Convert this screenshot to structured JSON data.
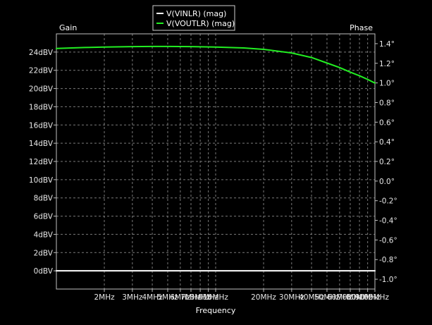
{
  "chart_data": {
    "type": "line",
    "title": "",
    "xlabel": "Frequency",
    "ylabel_left": "Gain",
    "ylabel_right": "Phase",
    "x_scale": "log",
    "x_unit": "Hz",
    "xlim": [
      1000000,
      100000000
    ],
    "ylim_left": [
      -2,
      26
    ],
    "ylim_right": [
      -1.1,
      1.5
    ],
    "grid": true,
    "legend_position": "top-center",
    "x_ticks": [
      {
        "value": 2000000,
        "label": "2MHz"
      },
      {
        "value": 3000000,
        "label": "3MHz"
      },
      {
        "value": 4000000,
        "label": "4MHz"
      },
      {
        "value": 5000000,
        "label": "5MHz"
      },
      {
        "value": 6000000,
        "label": "6MHz"
      },
      {
        "value": 7000000,
        "label": "7MHz"
      },
      {
        "value": 8000000,
        "label": "8MHz"
      },
      {
        "value": 9000000,
        "label": "9MHz"
      },
      {
        "value": 10000000,
        "label": "10MHz"
      },
      {
        "value": 20000000,
        "label": "20MHz"
      },
      {
        "value": 30000000,
        "label": "30MHz"
      },
      {
        "value": 40000000,
        "label": "40MHz"
      },
      {
        "value": 50000000,
        "label": "50MHz"
      },
      {
        "value": 60000000,
        "label": "60MHz"
      },
      {
        "value": 70000000,
        "label": "70MHz"
      },
      {
        "value": 80000000,
        "label": "80MHz"
      },
      {
        "value": 90000000,
        "label": "90MHz"
      },
      {
        "value": 100000000,
        "label": "100MHz"
      }
    ],
    "y_left_ticks": [
      {
        "value": 0,
        "label": "0dBV"
      },
      {
        "value": 2,
        "label": "2dBV"
      },
      {
        "value": 4,
        "label": "4dBV"
      },
      {
        "value": 6,
        "label": "6dBV"
      },
      {
        "value": 8,
        "label": "8dBV"
      },
      {
        "value": 10,
        "label": "10dBV"
      },
      {
        "value": 12,
        "label": "12dBV"
      },
      {
        "value": 14,
        "label": "14dBV"
      },
      {
        "value": 16,
        "label": "16dBV"
      },
      {
        "value": 18,
        "label": "18dBV"
      },
      {
        "value": 20,
        "label": "20dBV"
      },
      {
        "value": 22,
        "label": "22dBV"
      },
      {
        "value": 24,
        "label": "24dBV"
      }
    ],
    "y_right_ticks": [
      {
        "value": -1.0,
        "label": "-1.0°"
      },
      {
        "value": -0.8,
        "label": "-0.8°"
      },
      {
        "value": -0.6,
        "label": "-0.6°"
      },
      {
        "value": -0.4,
        "label": "-0.4°"
      },
      {
        "value": -0.2,
        "label": "-0.2°"
      },
      {
        "value": 0.0,
        "label": "0.0°"
      },
      {
        "value": 0.2,
        "label": "0.2°"
      },
      {
        "value": 0.4,
        "label": "0.4°"
      },
      {
        "value": 0.6,
        "label": "0.6°"
      },
      {
        "value": 0.8,
        "label": "0.8°"
      },
      {
        "value": 1.0,
        "label": "1.0°"
      },
      {
        "value": 1.2,
        "label": "1.2°"
      },
      {
        "value": 1.4,
        "label": "1.4°"
      }
    ],
    "series": [
      {
        "name": "V(VINLR) (mag)",
        "color": "#ffffff",
        "axis": "left",
        "x": [
          1000000,
          100000000
        ],
        "y": [
          0,
          0
        ]
      },
      {
        "name": "V(VOUTLR) (mag)",
        "color": "#22ee22",
        "axis": "left",
        "x": [
          1000000,
          1500000,
          2000000,
          3000000,
          4000000,
          5000000,
          7000000,
          10000000,
          15000000,
          20000000,
          30000000,
          40000000,
          50000000,
          60000000,
          70000000,
          80000000,
          90000000,
          100000000
        ],
        "y": [
          24.4,
          24.5,
          24.55,
          24.6,
          24.62,
          24.62,
          24.6,
          24.55,
          24.45,
          24.3,
          23.9,
          23.4,
          22.8,
          22.3,
          21.8,
          21.4,
          21.0,
          20.6
        ]
      }
    ]
  }
}
